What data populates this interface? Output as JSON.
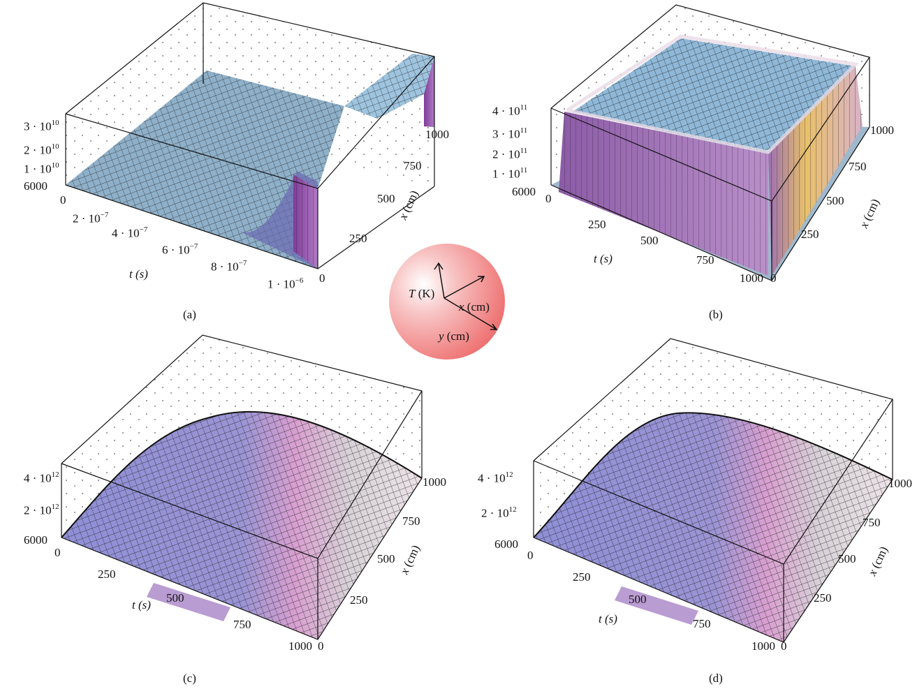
{
  "legend": {
    "t_label": "T",
    "t_unit": "(K)",
    "x_label": "x",
    "x_unit": "(cm)",
    "y_label": "y",
    "y_unit": "(cm)",
    "sphere_color": "#ee6f6f"
  },
  "colors": {
    "mesh_blue": "#9fc4df",
    "wall_purple": "#a272b8",
    "mesh_lavender": "#8f8fd6",
    "mesh_pink": "#d99fd0",
    "mesh_white": "#ede3e8",
    "wall_gold": "#e8c06a"
  },
  "chart_data": [
    {
      "type": "surface",
      "caption": "(a)",
      "t_axis_label": "t",
      "t_axis_unit": "(s)",
      "x_axis_label": "x",
      "x_axis_unit": "(cm)",
      "t_ticks": [
        "0",
        "2 · 10",
        "4 · 10",
        "6 · 10",
        "8 · 10",
        "1 · 10"
      ],
      "t_tick_exp": [
        "",
        "−7",
        "−7",
        "−7",
        "−7",
        "−6"
      ],
      "t_range": [
        0,
        1e-06
      ],
      "x_ticks": [
        "0",
        "250",
        "500",
        "750",
        "1000"
      ],
      "x_range": [
        0,
        1000
      ],
      "z_ticks": [
        "6000",
        "1 · 10",
        "2 · 10",
        "3 · 10"
      ],
      "z_tick_exp": [
        "",
        "10",
        "10",
        "10"
      ],
      "z_range": [
        6000,
        35000000000.0
      ],
      "shape": "flat floor at 6000 K with a high-temperature wall along the far-right edge"
    },
    {
      "type": "surface",
      "caption": "(b)",
      "t_axis_label": "t",
      "t_axis_unit": "(s)",
      "x_axis_label": "x",
      "x_axis_unit": "(cm)",
      "t_ticks": [
        "0",
        "250",
        "500",
        "750",
        "1000"
      ],
      "t_range": [
        0,
        1000
      ],
      "x_ticks": [
        "0",
        "250",
        "500",
        "750",
        "1000"
      ],
      "x_range": [
        0,
        1000
      ],
      "z_ticks": [
        "6000",
        "1 · 10",
        "2 · 10",
        "3 · 10",
        "4 · 10"
      ],
      "z_tick_exp": [
        "",
        "11",
        "11",
        "11",
        "11"
      ],
      "z_range": [
        6000,
        450000000000.0
      ],
      "shape": "flat-topped plateau at about 4.5 · 10^11 K with steep walls"
    },
    {
      "type": "surface",
      "caption": "(c)",
      "t_axis_label": "t",
      "t_axis_unit": "(s)",
      "x_axis_label": "x",
      "x_axis_unit": "(cm)",
      "t_ticks": [
        "0",
        "250",
        "500",
        "750",
        "1000"
      ],
      "t_range": [
        0,
        1000
      ],
      "x_ticks": [
        "0",
        "250",
        "500",
        "750",
        "1000"
      ],
      "x_range": [
        0,
        1000
      ],
      "z_ticks": [
        "6000",
        "2 · 10",
        "4 · 10"
      ],
      "z_tick_exp": [
        "",
        "12",
        "12"
      ],
      "z_range": [
        6000,
        5000000000000.0
      ],
      "shape": "smooth dome, maximum near the center"
    },
    {
      "type": "surface",
      "caption": "(d)",
      "t_axis_label": "t",
      "t_axis_unit": "(s)",
      "x_axis_label": "x",
      "x_axis_unit": "(cm)",
      "t_ticks": [
        "0",
        "250",
        "500",
        "750",
        "1000"
      ],
      "t_range": [
        0,
        1000
      ],
      "x_ticks": [
        "0",
        "250",
        "500",
        "750",
        "1000"
      ],
      "x_range": [
        0,
        1000
      ],
      "z_ticks": [
        "6000",
        "2 · 10",
        "4 · 10"
      ],
      "z_tick_exp": [
        "",
        "12",
        "12"
      ],
      "z_range": [
        6000,
        5000000000000.0
      ],
      "shape": "smooth dome, maximum near the center"
    }
  ]
}
